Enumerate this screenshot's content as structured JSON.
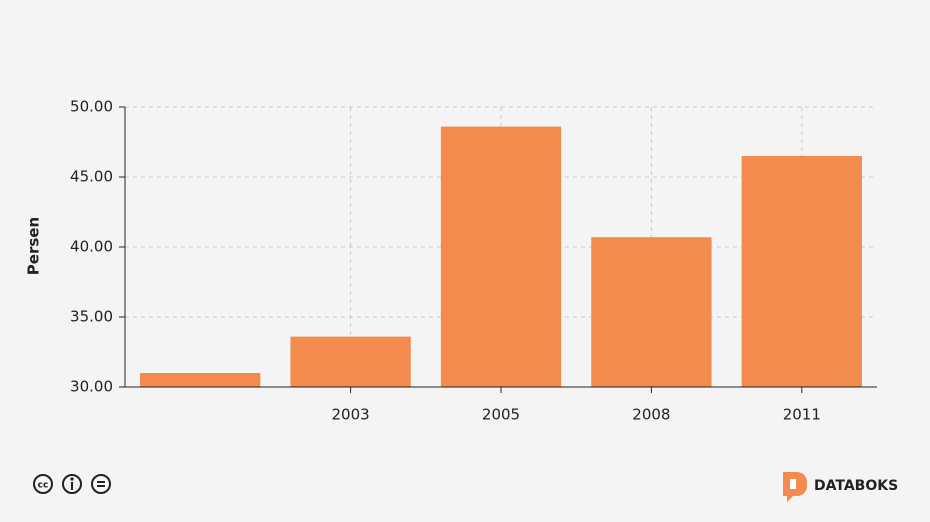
{
  "chart_data": {
    "type": "bar",
    "ylabel": "Persen",
    "categories": [
      null,
      "2003",
      "2005",
      "2008",
      "2011"
    ],
    "values": [
      31.0,
      33.6,
      48.6,
      40.7,
      46.5
    ],
    "color": "#f28b4d",
    "ylim": [
      30,
      50
    ],
    "yticks": [
      {
        "value": 30,
        "label": "30.00"
      },
      {
        "value": 35,
        "label": "35.00"
      },
      {
        "value": 40,
        "label": "40.00"
      },
      {
        "value": 45,
        "label": "45.00"
      },
      {
        "value": 50,
        "label": "50.00"
      }
    ],
    "grid": true,
    "brand": "DATABOKS"
  }
}
